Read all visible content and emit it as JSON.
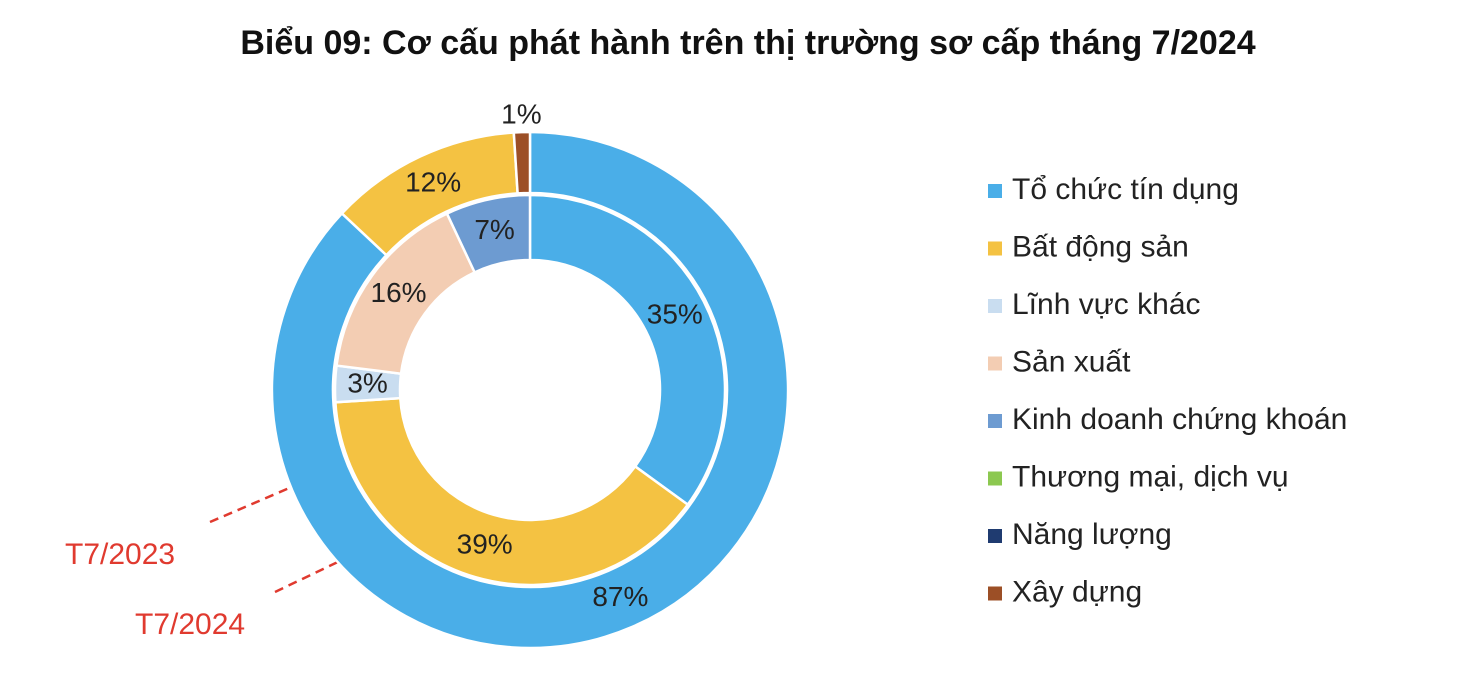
{
  "chart_data": {
    "type": "donut",
    "title": "Biểu 09: Cơ cấu phát hành trên thị trường sơ cấp tháng 7/2024",
    "categories": [
      "Tổ chức tín dụng",
      "Bất động sản",
      "Lĩnh vực khác",
      "Sản xuất",
      "Kinh doanh chứng khoán",
      "Thương mại, dịch vụ",
      "Năng lượng",
      "Xây dựng"
    ],
    "colors": [
      "#4aaee8",
      "#f4c242",
      "#c9ddf0",
      "#f3cdb3",
      "#6d9bd1",
      "#8cc850",
      "#1f3b70",
      "#9c4f26"
    ],
    "series": [
      {
        "name": "T7/2024",
        "values": [
          87,
          12,
          null,
          null,
          null,
          null,
          null,
          1
        ],
        "value_labels": [
          "87%",
          "12%",
          null,
          null,
          null,
          null,
          null,
          "1%"
        ]
      },
      {
        "name": "T7/2023",
        "values": [
          35,
          39,
          3,
          16,
          7,
          null,
          null,
          null
        ],
        "value_labels": [
          "35%",
          "39%",
          "3%",
          "16%",
          "7%",
          null,
          null,
          null
        ]
      }
    ],
    "legend": "right"
  }
}
